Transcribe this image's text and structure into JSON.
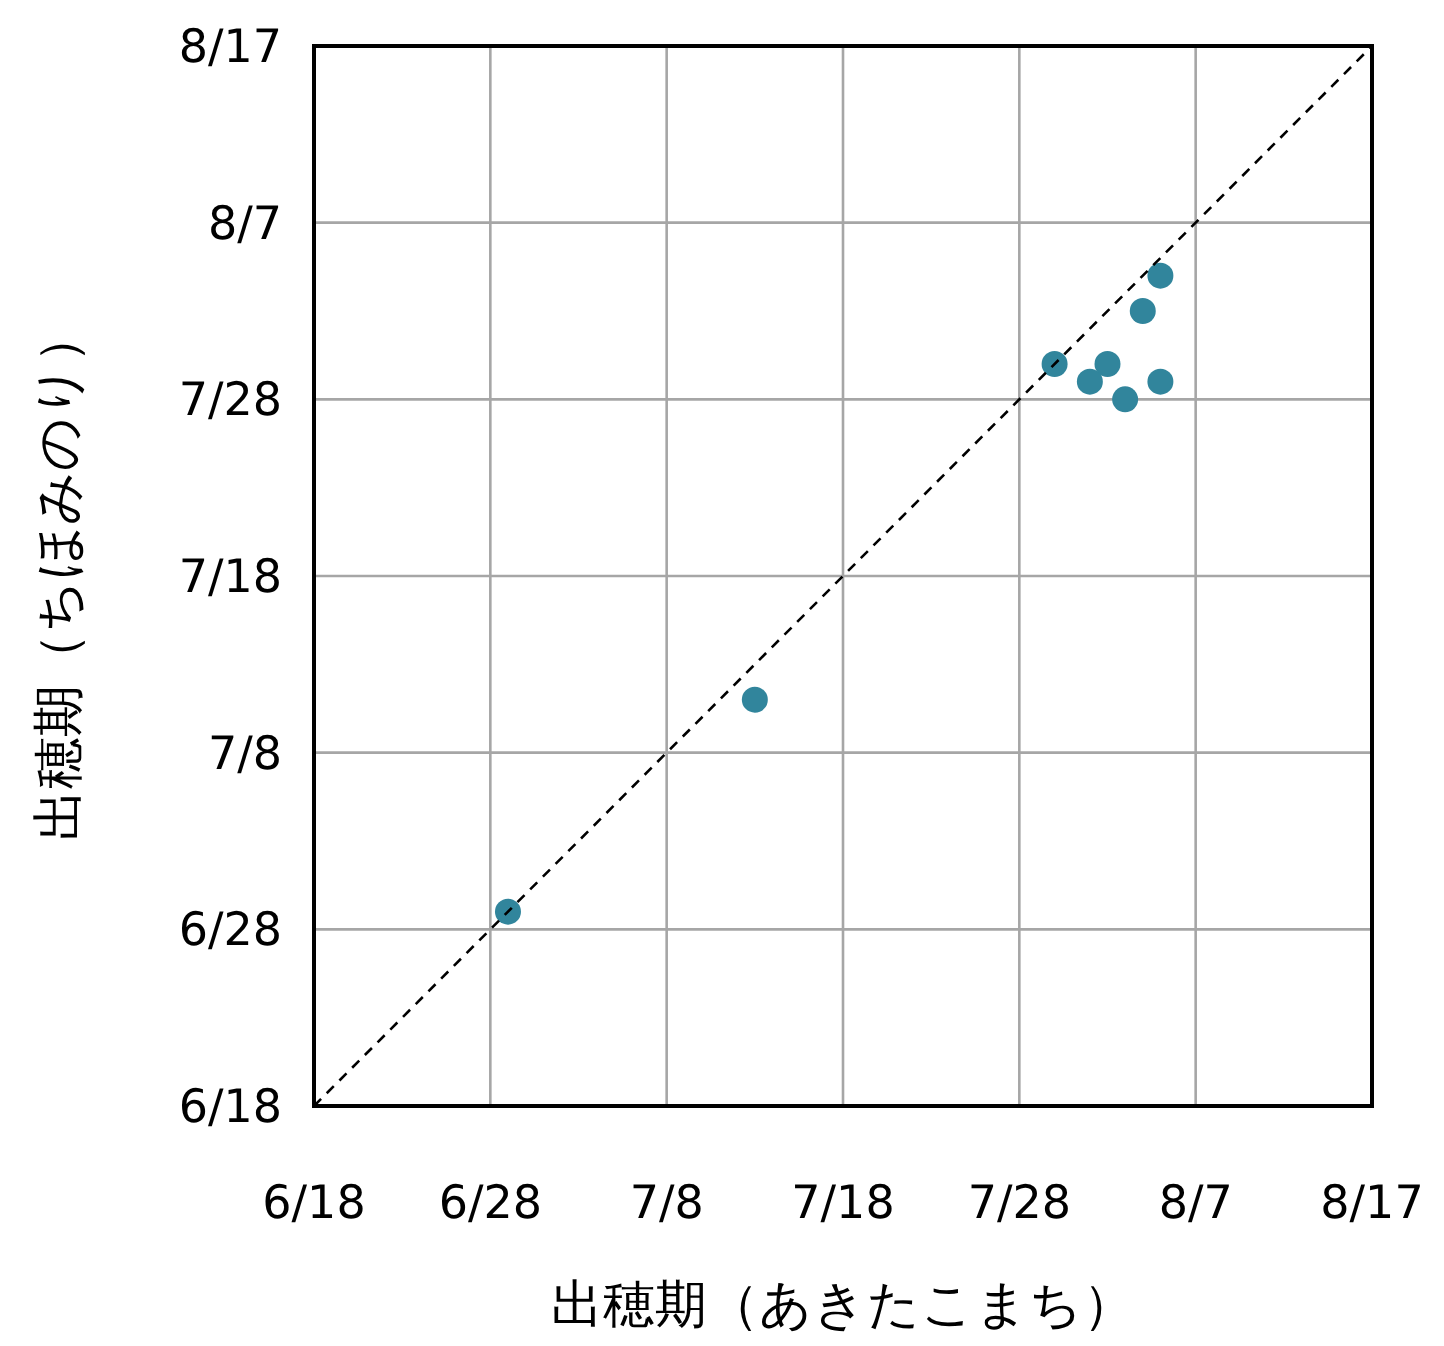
{
  "chart_data": {
    "type": "scatter",
    "xlabel": "出穂期（あきたこまち）",
    "ylabel": "出穂期（ちほみのり）",
    "xlim": [
      "--06-18",
      "--08-17"
    ],
    "ylim": [
      "--06-18",
      "--08-17"
    ],
    "xticks": [
      {
        "value": "--06-18",
        "label": "6/18"
      },
      {
        "value": "--06-28",
        "label": "6/28"
      },
      {
        "value": "--07-08",
        "label": "7/8"
      },
      {
        "value": "--07-18",
        "label": "7/18"
      },
      {
        "value": "--07-28",
        "label": "7/28"
      },
      {
        "value": "--08-07",
        "label": "8/7"
      },
      {
        "value": "--08-17",
        "label": "8/17"
      }
    ],
    "yticks": [
      {
        "value": "--06-18",
        "label": "6/18"
      },
      {
        "value": "--06-28",
        "label": "6/28"
      },
      {
        "value": "--07-08",
        "label": "7/8"
      },
      {
        "value": "--07-18",
        "label": "7/18"
      },
      {
        "value": "--07-28",
        "label": "7/28"
      },
      {
        "value": "--08-07",
        "label": "8/7"
      },
      {
        "value": "--08-17",
        "label": "8/17"
      }
    ],
    "grid": true,
    "marker": "circle",
    "series": [
      {
        "color": "#31859c",
        "x": [
          "--06-29",
          "--07-13",
          "--07-30",
          "--08-01",
          "--08-02",
          "--08-03",
          "--08-04",
          "--08-05",
          "--08-05"
        ],
        "values": [
          11502,
          11514,
          11533,
          11532,
          11533,
          11531,
          11536,
          11538,
          11532
        ]
      },
      {
        "type": "line",
        "color": "#000000",
        "line_style": "dashed",
        "marker": "none",
        "x": [
          "--06-18",
          "--08-17"
        ],
        "values": [
          11491,
          11551
        ]
      }
    ]
  }
}
